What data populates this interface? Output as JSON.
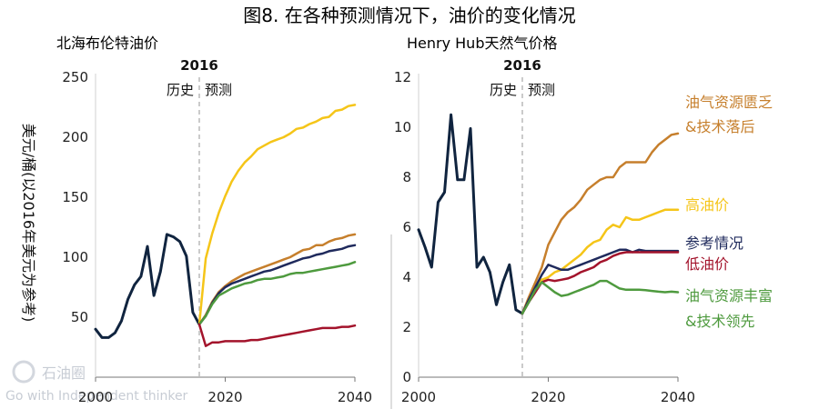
{
  "title": "图8. 在各种预测情况下，油价的变化情况",
  "watermark": {
    "brand": "石油圈",
    "tagline": "Go with Independent thinker"
  },
  "chart_data": [
    {
      "type": "line",
      "title": "北海布伦特油价",
      "ylabel": "美元/桶(以2016年美元为参考)",
      "xlim": [
        2000,
        2040
      ],
      "ylim": [
        0,
        250
      ],
      "xticks": [
        "2000",
        "2020",
        "2040"
      ],
      "yticks": [
        "50",
        "100",
        "150",
        "200",
        "250"
      ],
      "marker": {
        "year": 2016,
        "label": "2016",
        "left_label": "历史",
        "right_label": "预测"
      },
      "series": [
        {
          "name": "",
          "color": "#10243f",
          "x": [
            2000,
            2001,
            2002,
            2003,
            2004,
            2005,
            2006,
            2007,
            2008,
            2009,
            2010,
            2011,
            2012,
            2013,
            2014,
            2015,
            2016
          ],
          "y": [
            40,
            33,
            33,
            37,
            47,
            65,
            77,
            84,
            109,
            68,
            88,
            119,
            117,
            113,
            101,
            54,
            44
          ]
        },
        {
          "name": "",
          "color": "#f5c518",
          "x": [
            2016,
            2017,
            2018,
            2019,
            2020,
            2021,
            2022,
            2023,
            2024,
            2025,
            2026,
            2027,
            2028,
            2029,
            2030,
            2031,
            2032,
            2033,
            2034,
            2035,
            2036,
            2037,
            2038,
            2039,
            2040
          ],
          "y": [
            44,
            99,
            120,
            137,
            151,
            163,
            172,
            179,
            184,
            190,
            193,
            196,
            198,
            200,
            203,
            207,
            208,
            211,
            213,
            216,
            217,
            222,
            223,
            226,
            227
          ]
        },
        {
          "name": "",
          "color": "#c67f2c",
          "x": [
            2016,
            2017,
            2018,
            2019,
            2020,
            2021,
            2022,
            2023,
            2024,
            2025,
            2026,
            2027,
            2028,
            2029,
            2030,
            2031,
            2032,
            2033,
            2034,
            2035,
            2036,
            2037,
            2038,
            2039,
            2040
          ],
          "y": [
            44,
            52,
            63,
            71,
            76,
            80,
            83,
            86,
            88,
            90,
            92,
            94,
            96,
            98,
            100,
            103,
            106,
            107,
            110,
            110,
            113,
            115,
            116,
            118,
            119
          ]
        },
        {
          "name": "",
          "color": "#1f2a5c",
          "x": [
            2016,
            2017,
            2018,
            2019,
            2020,
            2021,
            2022,
            2023,
            2024,
            2025,
            2026,
            2027,
            2028,
            2029,
            2030,
            2031,
            2032,
            2033,
            2034,
            2035,
            2036,
            2037,
            2038,
            2039,
            2040
          ],
          "y": [
            44,
            51,
            62,
            70,
            75,
            78,
            80,
            82,
            84,
            86,
            88,
            89,
            91,
            93,
            95,
            97,
            99,
            100,
            102,
            103,
            105,
            106,
            107,
            109,
            110
          ]
        },
        {
          "name": "",
          "color": "#4e9a3e",
          "x": [
            2016,
            2017,
            2018,
            2019,
            2020,
            2021,
            2022,
            2023,
            2024,
            2025,
            2026,
            2027,
            2028,
            2029,
            2030,
            2031,
            2032,
            2033,
            2034,
            2035,
            2036,
            2037,
            2038,
            2039,
            2040
          ],
          "y": [
            44,
            51,
            61,
            68,
            71,
            74,
            76,
            78,
            79,
            81,
            82,
            82,
            83,
            84,
            86,
            87,
            87,
            88,
            89,
            90,
            91,
            92,
            93,
            94,
            96
          ]
        },
        {
          "name": "",
          "color": "#a3132b",
          "x": [
            2016,
            2017,
            2018,
            2019,
            2020,
            2021,
            2022,
            2023,
            2024,
            2025,
            2026,
            2027,
            2028,
            2029,
            2030,
            2031,
            2032,
            2033,
            2034,
            2035,
            2036,
            2037,
            2038,
            2039,
            2040
          ],
          "y": [
            44,
            26,
            29,
            29,
            30,
            30,
            30,
            30,
            31,
            31,
            32,
            33,
            34,
            35,
            36,
            37,
            38,
            39,
            40,
            41,
            41,
            41,
            42,
            42,
            43
          ]
        }
      ]
    },
    {
      "type": "line",
      "title": "Henry Hub天然气价格",
      "ylabel": "",
      "xlim": [
        2000,
        2040
      ],
      "ylim": [
        0,
        12
      ],
      "xticks": [
        "2000",
        "2020",
        "2040"
      ],
      "yticks": [
        "0",
        "2",
        "4",
        "6",
        "8",
        "10",
        "12"
      ],
      "marker": {
        "year": 2016,
        "label": "2016",
        "left_label": "历史",
        "right_label": "预测"
      },
      "series": [
        {
          "name": "",
          "color": "#10243f",
          "x": [
            2000,
            2001,
            2002,
            2003,
            2004,
            2005,
            2006,
            2007,
            2008,
            2009,
            2010,
            2011,
            2012,
            2013,
            2014,
            2015,
            2016
          ],
          "y": [
            5.9,
            5.2,
            4.4,
            7.0,
            7.4,
            10.5,
            7.9,
            7.9,
            9.95,
            4.4,
            4.8,
            4.2,
            2.9,
            3.8,
            4.5,
            2.7,
            2.55
          ]
        },
        {
          "name": "油气资源匮乏&技术落后",
          "color": "#c67f2c",
          "x": [
            2016,
            2017,
            2018,
            2019,
            2020,
            2021,
            2022,
            2023,
            2024,
            2025,
            2026,
            2027,
            2028,
            2029,
            2030,
            2031,
            2032,
            2033,
            2034,
            2035,
            2036,
            2037,
            2038,
            2039,
            2040
          ],
          "y": [
            2.55,
            3.2,
            3.8,
            4.4,
            5.3,
            5.8,
            6.3,
            6.6,
            6.8,
            7.1,
            7.5,
            7.7,
            7.9,
            8.0,
            8.0,
            8.4,
            8.6,
            8.6,
            8.6,
            8.6,
            9.0,
            9.3,
            9.5,
            9.7,
            9.75
          ]
        },
        {
          "name": "高油价",
          "color": "#f5c518",
          "x": [
            2016,
            2017,
            2018,
            2019,
            2020,
            2021,
            2022,
            2023,
            2024,
            2025,
            2026,
            2027,
            2028,
            2029,
            2030,
            2031,
            2032,
            2033,
            2034,
            2035,
            2036,
            2037,
            2038,
            2039,
            2040
          ],
          "y": [
            2.55,
            3.1,
            3.6,
            3.9,
            4.0,
            4.2,
            4.3,
            4.5,
            4.7,
            4.9,
            5.2,
            5.4,
            5.5,
            5.9,
            6.1,
            6.0,
            6.4,
            6.3,
            6.3,
            6.4,
            6.5,
            6.6,
            6.7,
            6.7,
            6.7
          ]
        },
        {
          "name": "参考情况",
          "color": "#1f2a5c",
          "x": [
            2016,
            2017,
            2018,
            2019,
            2020,
            2021,
            2022,
            2023,
            2024,
            2025,
            2026,
            2027,
            2028,
            2029,
            2030,
            2031,
            2032,
            2033,
            2034,
            2035,
            2036,
            2037,
            2038,
            2039,
            2040
          ],
          "y": [
            2.55,
            3.1,
            3.6,
            4.1,
            4.5,
            4.4,
            4.3,
            4.3,
            4.4,
            4.5,
            4.6,
            4.7,
            4.8,
            4.9,
            5.0,
            5.1,
            5.1,
            5.0,
            5.1,
            5.05,
            5.05,
            5.05,
            5.05,
            5.05,
            5.05
          ]
        },
        {
          "name": "低油价",
          "color": "#a3132b",
          "x": [
            2016,
            2017,
            2018,
            2019,
            2020,
            2021,
            2022,
            2023,
            2024,
            2025,
            2026,
            2027,
            2028,
            2029,
            2030,
            2031,
            2032,
            2033,
            2034,
            2035,
            2036,
            2037,
            2038,
            2039,
            2040
          ],
          "y": [
            2.55,
            3.0,
            3.4,
            3.8,
            3.9,
            3.85,
            3.9,
            3.95,
            4.05,
            4.2,
            4.3,
            4.4,
            4.6,
            4.7,
            4.85,
            4.95,
            5.0,
            5.0,
            5.0,
            5.0,
            5.0,
            5.0,
            5.0,
            5.0,
            5.0
          ]
        },
        {
          "name": "油气资源丰富&技术领先",
          "color": "#4e9a3e",
          "x": [
            2016,
            2017,
            2018,
            2019,
            2020,
            2021,
            2022,
            2023,
            2024,
            2025,
            2026,
            2027,
            2028,
            2029,
            2030,
            2031,
            2032,
            2033,
            2034,
            2035,
            2036,
            2037,
            2038,
            2039,
            2040
          ],
          "y": [
            2.55,
            3.0,
            3.5,
            3.8,
            3.6,
            3.4,
            3.25,
            3.3,
            3.4,
            3.5,
            3.6,
            3.7,
            3.85,
            3.85,
            3.7,
            3.55,
            3.5,
            3.5,
            3.5,
            3.48,
            3.45,
            3.42,
            3.4,
            3.42,
            3.4
          ]
        }
      ]
    }
  ]
}
